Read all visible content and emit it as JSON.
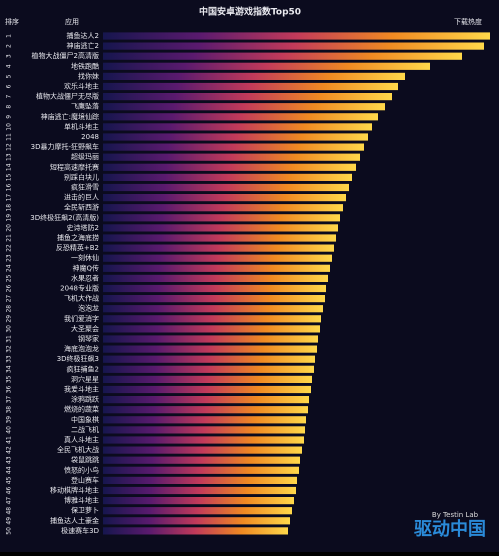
{
  "chart_data": {
    "type": "barh",
    "title": "中国安卓游戏指数Top50",
    "rank_header": "排序",
    "name_header": "应用",
    "value_header": "下载热度",
    "ranks": [
      1,
      2,
      3,
      4,
      5,
      6,
      7,
      8,
      9,
      10,
      11,
      12,
      13,
      14,
      15,
      16,
      17,
      18,
      19,
      20,
      21,
      22,
      23,
      24,
      25,
      26,
      27,
      28,
      29,
      30,
      31,
      32,
      33,
      34,
      35,
      36,
      37,
      38,
      39,
      40,
      41,
      42,
      43,
      44,
      45,
      46,
      47,
      48,
      49,
      50
    ],
    "categories": [
      "捕鱼达人2",
      "神庙逃亡2",
      "植物大战僵尸2高清版",
      "地铁跑酷",
      "找你妹",
      "欢乐斗地主",
      "植物大战僵尸无尽版",
      "飞鹰坠落",
      "神庙逃亡:魔境仙踪",
      "单机斗地主",
      "2048",
      "3D暴力摩托-狂野飙车",
      "超级玛丽",
      "短程高速摩托赛",
      "别踩白块儿",
      "疯狂滑雪",
      "进击的巨人",
      "全民斩西游",
      "3D终极狂飙2(高清版)",
      "史诗塔防2",
      "捕鱼之海底捞",
      "反恐精英+B2",
      "一刻休仙",
      "神魔Q传",
      "水果忍者",
      "2048专业版",
      "飞机大作战",
      "泡泡龙",
      "我们爱消字",
      "大圣聚会",
      "钢琴家",
      "海底泡泡龙",
      "3D终极狂飙3",
      "疯狂捕鱼2",
      "洞穴星星",
      "我爱斗地主",
      "涂鸦跳跃",
      "燃烧的蔬菜",
      "中国象棋",
      "二战飞机",
      "真人斗地主",
      "全民飞机大战",
      "袋鼠跳跳",
      "愤怒的小鸟",
      "登山赛车",
      "移动棋牌斗地主",
      "博雅斗地主",
      "保卫萝卜",
      "捕鱼达人土豪金",
      "极速赛车3D"
    ],
    "values": [
      387,
      381,
      359,
      327,
      302,
      295,
      289,
      282,
      275,
      269,
      265,
      261,
      257,
      253,
      249,
      246,
      243,
      240,
      237,
      235,
      233,
      231,
      229,
      227,
      225,
      223,
      222,
      220,
      218,
      217,
      215,
      214,
      212,
      211,
      209,
      208,
      206,
      205,
      203,
      202,
      201,
      199,
      197,
      196,
      194,
      193,
      191,
      189,
      187,
      185
    ],
    "colors": [
      "#16164e",
      "#5a1a6e",
      "#c23a5a",
      "#f08a22",
      "#ffd84a"
    ],
    "watermark": "驱动中国",
    "watermark_sub": "By Testin Lab"
  }
}
